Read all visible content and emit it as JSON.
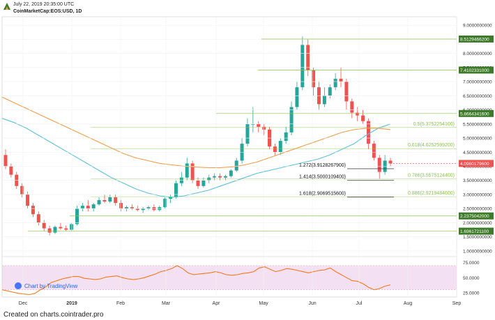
{
  "header": {
    "date": "July 22, 2019 20:35:00 UTC",
    "symbol": "CoinMarketCap:EOS:USD, 1D"
  },
  "footer": {
    "text": "Created on charts.cointrader.pro"
  },
  "watermark": {
    "text": "Chart by TradingView"
  },
  "colors": {
    "up": "#26a69a",
    "down": "#ef5350",
    "ma_short": "#5bc0de",
    "ma_long": "#f39c4a",
    "fib_green": "#8bc34a",
    "level_dark": "#3d7a2a",
    "rsi": "#f07a1a",
    "rsi_band": "#f3e0f2"
  },
  "chart_data": [
    {
      "type": "candlestick",
      "ylim": [
        0.8,
        9.3
      ],
      "y_ticks": [
        "1.0000000000",
        "1.5000000000",
        "2.0000000000",
        "2.5000000000",
        "3.0000000000",
        "3.5000000000",
        "4.0000000000",
        "4.5000000000",
        "5.0000000000",
        "5.5000000000",
        "6.0000000000",
        "6.5000000000",
        "7.0000000000",
        "7.5000000000",
        "8.0000000000",
        "8.5000000000",
        "9.0000000000"
      ],
      "x_ticks": [
        "Dec",
        "2019",
        "Feb",
        "Mar",
        "Apr",
        "May",
        "Jun",
        "Jul",
        "Aug",
        "Sep"
      ],
      "price_levels": [
        {
          "label": "8.5129466200",
          "value": 8.51
        },
        {
          "label": "7.4102331000",
          "value": 7.41
        },
        {
          "label": "5.8664341600",
          "value": 5.87
        },
        {
          "label": "2.2375042000",
          "value": 2.24
        },
        {
          "label": "1.6961721100",
          "value": 1.7
        }
      ],
      "current_price": {
        "label": "4.0960179600",
        "value": 4.1
      },
      "fib_retracement": [
        {
          "label": "0.5(5.3752254100)",
          "value": 5.375
        },
        {
          "label": "0.618(4.6252599200)",
          "value": 4.625
        },
        {
          "label": "0.786(3.5575124400)",
          "value": 3.558
        },
        {
          "label": "0.886(2.9219484600)",
          "value": 2.922
        }
      ],
      "fib_extension": [
        {
          "label": "1.272(3.9128267900)",
          "value": 3.913
        },
        {
          "label": "1.414(3.5000109400)",
          "value": 3.5
        },
        {
          "label": "1.618(2.9069515600)",
          "value": 2.907
        }
      ],
      "series": [
        {
          "values": [
            [
              4.4,
              4.6,
              3.9,
              4.0
            ],
            [
              4.0,
              4.1,
              3.6,
              3.7
            ],
            [
              3.7,
              3.8,
              3.2,
              3.3
            ],
            [
              3.3,
              3.4,
              2.9,
              3.0
            ],
            [
              3.0,
              3.1,
              2.5,
              2.6
            ],
            [
              2.6,
              2.7,
              2.2,
              2.3
            ],
            [
              2.3,
              2.4,
              1.9,
              2.0
            ],
            [
              2.0,
              2.1,
              1.7,
              1.8
            ],
            [
              1.8,
              1.9,
              1.55,
              1.65
            ],
            [
              1.65,
              1.9,
              1.6,
              1.85
            ],
            [
              1.85,
              2.0,
              1.75,
              1.8
            ],
            [
              1.8,
              1.9,
              1.7,
              1.75
            ],
            [
              1.75,
              2.0,
              1.72,
              1.95
            ],
            [
              1.95,
              2.6,
              1.9,
              2.5
            ],
            [
              2.5,
              2.7,
              2.4,
              2.6
            ],
            [
              2.6,
              2.8,
              2.4,
              2.5
            ],
            [
              2.5,
              2.7,
              2.4,
              2.65
            ],
            [
              2.65,
              2.9,
              2.6,
              2.8
            ],
            [
              2.8,
              3.0,
              2.7,
              2.75
            ],
            [
              2.75,
              3.0,
              2.7,
              2.9
            ],
            [
              2.9,
              3.0,
              2.6,
              2.7
            ],
            [
              2.7,
              2.8,
              2.4,
              2.5
            ],
            [
              2.5,
              2.6,
              2.4,
              2.55
            ],
            [
              2.55,
              2.65,
              2.45,
              2.5
            ],
            [
              2.5,
              2.6,
              2.4,
              2.45
            ],
            [
              2.45,
              2.55,
              2.35,
              2.5
            ],
            [
              2.5,
              2.6,
              2.45,
              2.55
            ],
            [
              2.55,
              2.65,
              2.4,
              2.45
            ],
            [
              2.45,
              2.6,
              2.4,
              2.55
            ],
            [
              2.55,
              2.9,
              2.5,
              2.85
            ],
            [
              2.85,
              3.0,
              2.7,
              2.9
            ],
            [
              2.9,
              3.5,
              2.85,
              3.4
            ],
            [
              3.4,
              3.8,
              3.3,
              3.6
            ],
            [
              3.6,
              4.3,
              3.5,
              4.1
            ],
            [
              4.1,
              4.2,
              3.4,
              3.5
            ],
            [
              3.5,
              3.6,
              3.2,
              3.3
            ],
            [
              3.3,
              3.6,
              3.25,
              3.5
            ],
            [
              3.5,
              3.7,
              3.4,
              3.6
            ],
            [
              3.6,
              3.75,
              3.5,
              3.65
            ],
            [
              3.65,
              3.75,
              3.5,
              3.6
            ],
            [
              3.6,
              3.7,
              3.5,
              3.65
            ],
            [
              3.65,
              3.9,
              3.6,
              3.85
            ],
            [
              3.85,
              4.3,
              3.8,
              4.2
            ],
            [
              4.2,
              5.0,
              4.1,
              4.8
            ],
            [
              4.8,
              5.7,
              4.7,
              5.5
            ],
            [
              5.5,
              6.1,
              5.2,
              5.5
            ],
            [
              5.5,
              5.6,
              5.2,
              5.4
            ],
            [
              5.4,
              5.5,
              5.1,
              5.3
            ],
            [
              5.3,
              5.4,
              4.6,
              4.7
            ],
            [
              4.7,
              4.8,
              4.4,
              4.5
            ],
            [
              4.5,
              5.0,
              4.4,
              4.9
            ],
            [
              4.9,
              5.4,
              4.8,
              5.2
            ],
            [
              5.2,
              6.3,
              5.1,
              6.1
            ],
            [
              6.1,
              7.0,
              6.0,
              6.8
            ],
            [
              6.8,
              8.6,
              6.7,
              8.3
            ],
            [
              8.3,
              8.5,
              7.2,
              7.4
            ],
            [
              7.4,
              7.5,
              6.5,
              6.8
            ],
            [
              6.8,
              7.0,
              6.0,
              6.2
            ],
            [
              6.2,
              6.8,
              6.1,
              6.5
            ],
            [
              6.5,
              6.9,
              6.4,
              6.8
            ],
            [
              6.8,
              7.3,
              6.7,
              7.1
            ],
            [
              7.1,
              7.5,
              6.8,
              7.0
            ],
            [
              7.0,
              7.1,
              6.0,
              6.3
            ],
            [
              6.3,
              6.4,
              5.7,
              5.9
            ],
            [
              5.9,
              6.1,
              5.6,
              5.8
            ],
            [
              5.8,
              6.0,
              5.5,
              5.6
            ],
            [
              5.6,
              5.7,
              4.6,
              4.8
            ],
            [
              4.8,
              4.9,
              4.2,
              4.3
            ],
            [
              4.3,
              4.4,
              3.55,
              3.8
            ],
            [
              3.8,
              4.4,
              3.7,
              4.2
            ],
            [
              4.2,
              4.3,
              4.0,
              4.1
            ]
          ]
        }
      ],
      "moving_averages": [
        {
          "values": [
            5.7,
            5.55,
            5.35,
            5.1,
            4.85,
            4.6,
            4.35,
            4.1,
            3.85,
            3.6,
            3.4,
            3.2,
            3.05,
            2.95,
            2.9,
            2.95,
            3.05,
            3.15,
            3.3,
            3.45,
            3.6,
            3.75,
            3.85,
            3.95,
            4.05,
            4.15,
            4.25,
            4.4,
            4.6,
            4.8,
            5.1,
            5.35,
            5.5
          ]
        },
        {
          "values": [
            6.45,
            6.25,
            6.05,
            5.85,
            5.65,
            5.45,
            5.25,
            5.05,
            4.85,
            4.65,
            4.45,
            4.3,
            4.2,
            4.1,
            4.05,
            4.0,
            3.97,
            3.95,
            3.95,
            3.98,
            4.05,
            4.15,
            4.3,
            4.45,
            4.6,
            4.75,
            4.9,
            5.05,
            5.2,
            5.3,
            5.35,
            5.35,
            5.3
          ]
        }
      ]
    },
    {
      "type": "line",
      "ylim": [
        18,
        85
      ],
      "y_ticks": [
        "25.0000",
        "50.0000",
        "75.0000"
      ],
      "band": [
        30,
        70
      ],
      "series": [
        {
          "values": [
            30,
            28,
            26,
            24,
            23,
            22,
            24,
            30,
            35,
            42,
            45,
            48,
            50,
            52,
            52,
            49,
            48,
            47,
            48,
            51,
            52,
            53,
            50,
            48,
            47,
            48,
            50,
            53,
            56,
            60,
            62,
            65,
            70,
            65,
            58,
            55,
            56,
            57,
            58,
            60,
            58,
            55,
            54,
            55,
            57,
            58,
            60,
            66,
            68,
            64,
            60,
            62,
            65,
            64,
            62,
            60,
            58,
            60,
            62,
            63,
            66,
            60,
            55,
            50,
            45,
            44,
            40,
            34,
            30,
            32,
            36,
            38
          ]
        }
      ]
    }
  ]
}
